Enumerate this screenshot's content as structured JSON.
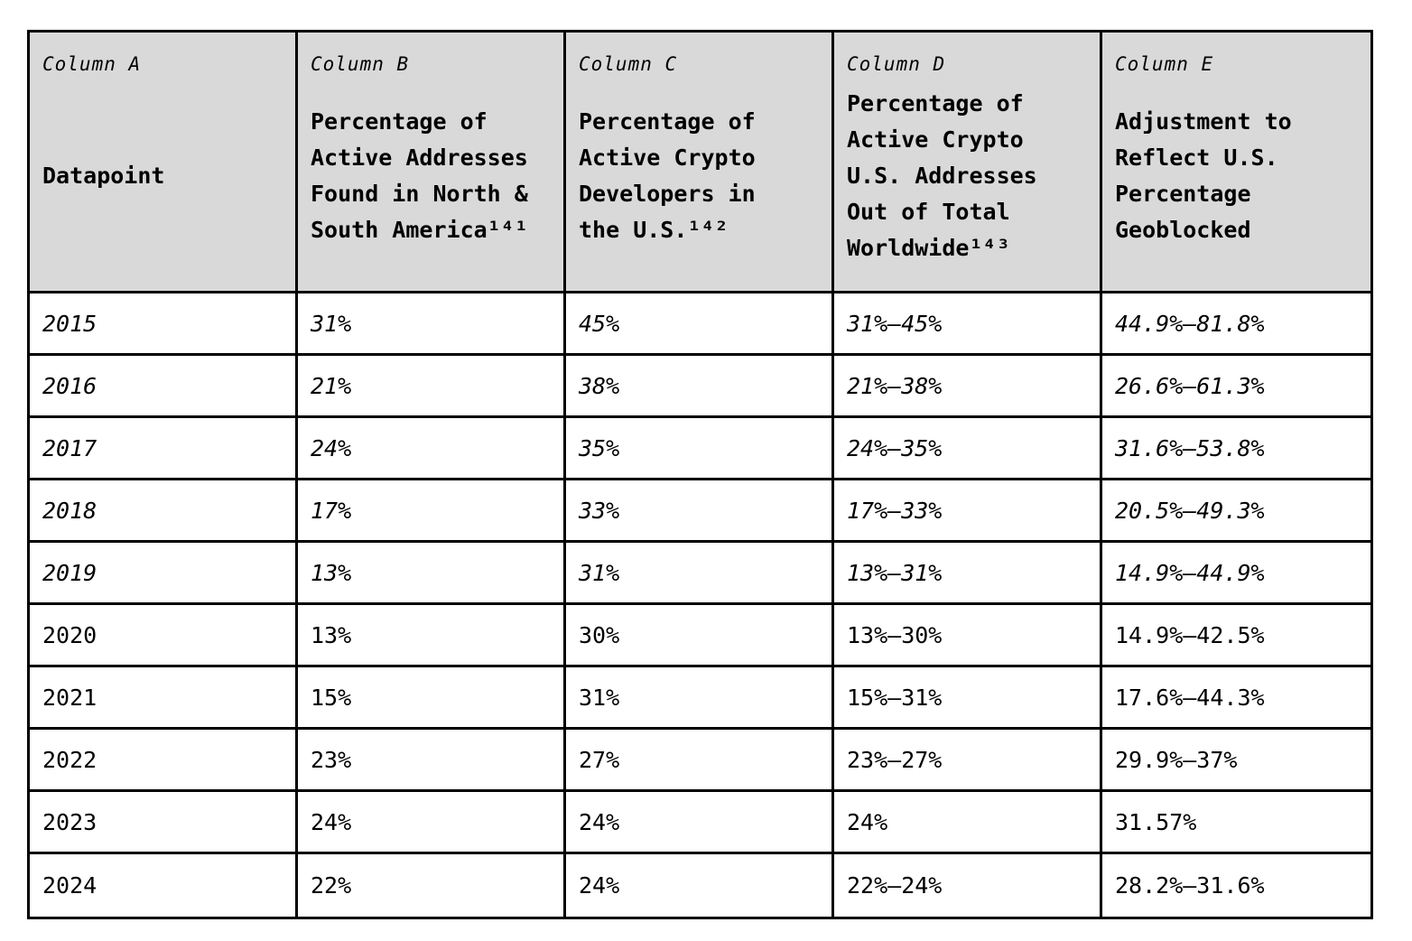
{
  "table": {
    "columns": [
      {
        "label": "Column A",
        "title": "Datapoint"
      },
      {
        "label": "Column B",
        "title": "Percentage of\nActive Addresses\nFound in North &\nSouth America¹⁴¹"
      },
      {
        "label": "Column C",
        "title": "Percentage of\nActive Crypto\nDevelopers in\nthe U.S.¹⁴²"
      },
      {
        "label": "Column D",
        "title": "Percentage of\nActive Crypto\nU.S. Addresses\nOut of Total\nWorldwide¹⁴³"
      },
      {
        "label": "Column E",
        "title": "Adjustment to\nReflect U.S.\nPercentage\nGeoblocked"
      }
    ],
    "footnotes": [
      "141",
      "142",
      "143"
    ],
    "rows": [
      {
        "year": "2015",
        "b": "31%",
        "c": "45%",
        "d": "31%–45%",
        "e": "44.9%–81.8%"
      },
      {
        "year": "2016",
        "b": "21%",
        "c": "38%",
        "d": "21%–38%",
        "e": "26.6%–61.3%"
      },
      {
        "year": "2017",
        "b": "24%",
        "c": "35%",
        "d": "24%–35%",
        "e": "31.6%–53.8%"
      },
      {
        "year": "2018",
        "b": "17%",
        "c": "33%",
        "d": "17%–33%",
        "e": "20.5%–49.3%"
      },
      {
        "year": "2019",
        "b": "13%",
        "c": "31%",
        "d": "13%–31%",
        "e": "14.9%–44.9%"
      },
      {
        "year": "2020",
        "b": "13%",
        "c": "30%",
        "d": "13%–30%",
        "e": "14.9%–42.5%"
      },
      {
        "year": "2021",
        "b": "15%",
        "c": "31%",
        "d": "15%–31%",
        "e": "17.6%–44.3%"
      },
      {
        "year": "2022",
        "b": "23%",
        "c": "27%",
        "d": "23%–27%",
        "e": "29.9%–37%"
      },
      {
        "year": "2023",
        "b": "24%",
        "c": "24%",
        "d": "24%",
        "e": "31.57%"
      },
      {
        "year": "2024",
        "b": "22%",
        "c": "24%",
        "d": "22%–24%",
        "e": "28.2%–31.6%"
      }
    ],
    "colors": {
      "header_bg": "#d9d9d9",
      "border": "#000000",
      "text": "#000000",
      "page_bg": "#ffffff"
    }
  }
}
